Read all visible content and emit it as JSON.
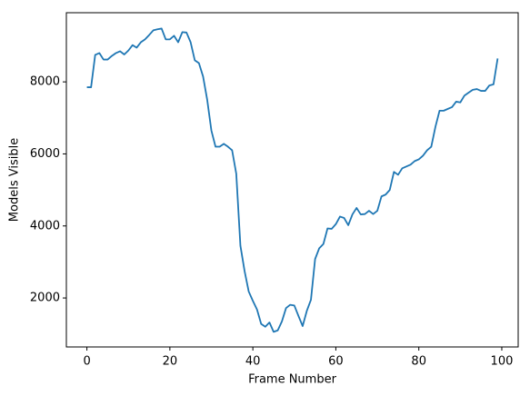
{
  "chart_data": {
    "type": "line",
    "xlabel": "Frame Number",
    "ylabel": "Models Visible",
    "x": [
      0,
      1,
      2,
      3,
      4,
      5,
      6,
      7,
      8,
      9,
      10,
      11,
      12,
      13,
      14,
      15,
      16,
      17,
      18,
      19,
      20,
      21,
      22,
      23,
      24,
      25,
      26,
      27,
      28,
      29,
      30,
      31,
      32,
      33,
      34,
      35,
      36,
      37,
      38,
      39,
      40,
      41,
      42,
      43,
      44,
      45,
      46,
      47,
      48,
      49,
      50,
      51,
      52,
      53,
      54,
      55,
      56,
      57,
      58,
      59,
      60,
      61,
      62,
      63,
      64,
      65,
      66,
      67,
      68,
      69,
      70,
      71,
      72,
      73,
      74,
      75,
      76,
      77,
      78,
      79,
      80,
      81,
      82,
      83,
      84,
      85,
      86,
      87,
      88,
      89,
      90,
      91,
      92,
      93,
      94,
      95,
      96,
      97,
      98,
      99
    ],
    "series": [
      {
        "name": "Models Visible",
        "color": "#1f77b4",
        "values": [
          7850,
          7850,
          8750,
          8800,
          8620,
          8620,
          8720,
          8800,
          8850,
          8760,
          8870,
          9020,
          8950,
          9100,
          9180,
          9300,
          9430,
          9460,
          9480,
          9180,
          9180,
          9280,
          9100,
          9380,
          9370,
          9100,
          8600,
          8520,
          8150,
          7500,
          6650,
          6200,
          6200,
          6280,
          6200,
          6100,
          5450,
          3450,
          2750,
          2180,
          1920,
          1680,
          1280,
          1200,
          1320,
          1060,
          1100,
          1350,
          1720,
          1810,
          1790,
          1500,
          1220,
          1640,
          1950,
          3080,
          3380,
          3500,
          3930,
          3920,
          4050,
          4260,
          4220,
          4020,
          4320,
          4500,
          4320,
          4330,
          4420,
          4330,
          4420,
          4820,
          4870,
          5000,
          5500,
          5420,
          5600,
          5650,
          5700,
          5800,
          5850,
          5950,
          6100,
          6200,
          6750,
          7200,
          7200,
          7250,
          7300,
          7450,
          7430,
          7620,
          7700,
          7780,
          7800,
          7750,
          7750,
          7900,
          7930,
          8650
        ]
      }
    ],
    "xlim": [
      -4.95,
      103.95
    ],
    "xticks": [
      0,
      20,
      40,
      60,
      80,
      100
    ],
    "ylim": [
      640,
      9920
    ],
    "yticks": [
      2000,
      4000,
      6000,
      8000
    ],
    "grid": false
  }
}
